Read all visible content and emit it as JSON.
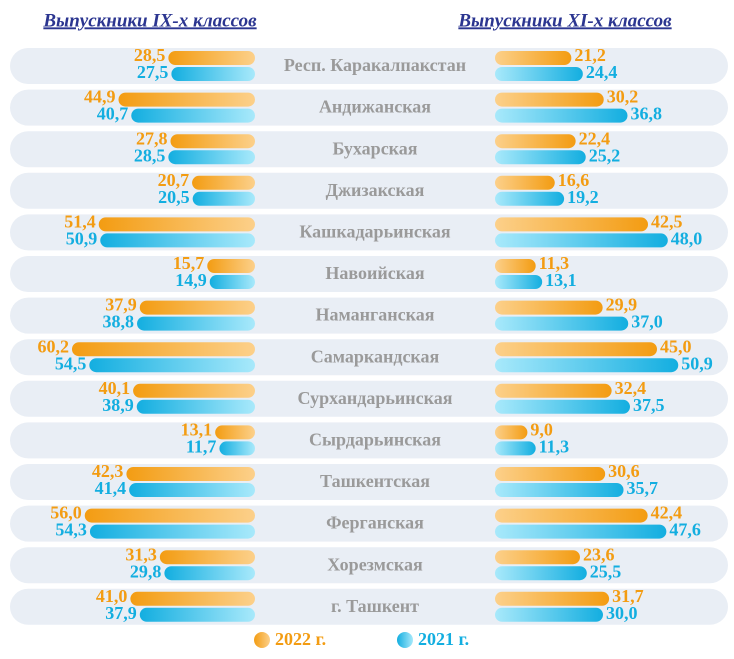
{
  "chart_data": {
    "type": "butterfly",
    "categories": [
      "Респ. Каракалпакстан",
      "Андижанская",
      "Бухарская",
      "Джизакская",
      "Кашкадарьинская",
      "Навоийская",
      "Наманганская",
      "Самаркандская",
      "Сурхандарьинская",
      "Сырдарьинская",
      "Ташкентская",
      "Ферганская",
      "Хорезмская",
      "г. Ташкент"
    ],
    "left": {
      "title": "Выпускники IX-х классов",
      "series": [
        {
          "name": "2022 г.",
          "color": "#f39c12",
          "values": [
            28.5,
            44.9,
            27.8,
            20.7,
            51.4,
            15.7,
            37.9,
            60.2,
            40.1,
            13.1,
            42.3,
            56.0,
            31.3,
            41.0
          ],
          "value_labels": [
            "28,5",
            "44,9",
            "27,8",
            "20,7",
            "51,4",
            "15,7",
            "37,9",
            "60,2",
            "40,1",
            "13,1",
            "42,3",
            "56,0",
            "31,3",
            "41,0"
          ]
        },
        {
          "name": "2021 г.",
          "color": "#13aee0",
          "values": [
            27.5,
            40.7,
            28.5,
            20.5,
            50.9,
            14.9,
            38.8,
            54.5,
            38.9,
            11.7,
            41.4,
            54.3,
            29.8,
            37.9
          ],
          "value_labels": [
            "27,5",
            "40,7",
            "28,5",
            "20,5",
            "50,9",
            "14,9",
            "38,8",
            "54,5",
            "38,9",
            "11,7",
            "41,4",
            "54,3",
            "29,8",
            "37,9"
          ]
        }
      ]
    },
    "right": {
      "title": "Выпускники XI-х классов",
      "series": [
        {
          "name": "2022 г.",
          "color": "#f39c12",
          "values": [
            21.2,
            30.2,
            22.4,
            16.6,
            42.5,
            11.3,
            29.9,
            45.0,
            32.4,
            9.0,
            30.6,
            42.4,
            23.6,
            31.7
          ],
          "value_labels": [
            "21,2",
            "30,2",
            "22,4",
            "16,6",
            "42,5",
            "11,3",
            "29,9",
            "45,0",
            "32,4",
            "9,0",
            "30,6",
            "42,4",
            "23,6",
            "31,7"
          ]
        },
        {
          "name": "2021 г.",
          "color": "#13aee0",
          "values": [
            24.4,
            36.8,
            25.2,
            19.2,
            48.0,
            13.1,
            37.0,
            50.9,
            37.5,
            11.3,
            35.7,
            47.6,
            25.5,
            30.0
          ],
          "value_labels": [
            "24,4",
            "36,8",
            "25,2",
            "19,2",
            "48,0",
            "13,1",
            "37,0",
            "50,9",
            "37,5",
            "11,3",
            "35,7",
            "47,6",
            "25,5",
            "30,0"
          ]
        }
      ]
    }
  }
}
